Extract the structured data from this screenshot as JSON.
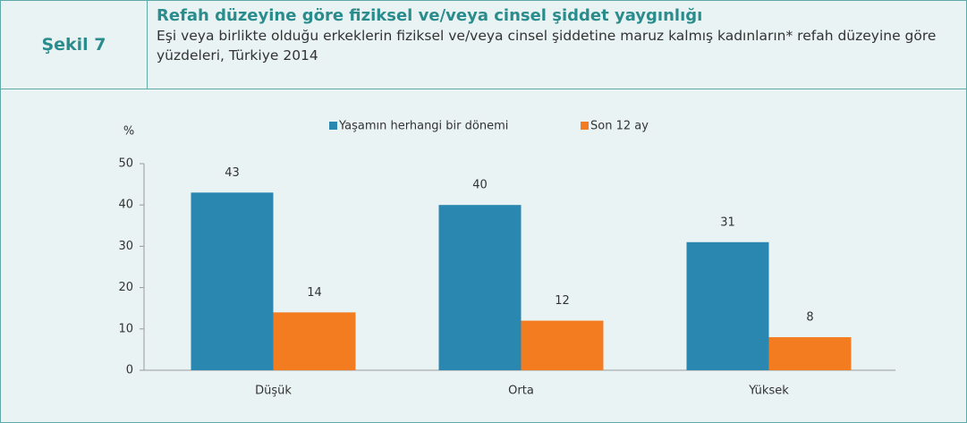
{
  "chart_data": {
    "type": "bar",
    "figure_label": "Şekil 7",
    "title": "Refah düzeyine göre fiziksel ve/veya cinsel şiddet yaygınlığı",
    "subtitle": "Eşi veya birlikte olduğu erkeklerin fiziksel ve/veya cinsel şiddetine maruz kalmış kadınların* refah düzeyine göre yüzdeleri, Türkiye 2014",
    "ylabel": "%",
    "categories": [
      "Düşük",
      "Orta",
      "Yüksek"
    ],
    "series": [
      {
        "name": "Yaşamın herhangi bir dönemi",
        "color": "#2a87b0",
        "values": [
          43,
          40,
          31
        ]
      },
      {
        "name": "Son 12 ay",
        "color": "#f47c20",
        "values": [
          14,
          12,
          8
        ]
      }
    ],
    "ylim": [
      0,
      50
    ],
    "yticks": [
      0,
      10,
      20,
      30,
      40,
      50
    ],
    "legend": "top",
    "grid": false
  }
}
